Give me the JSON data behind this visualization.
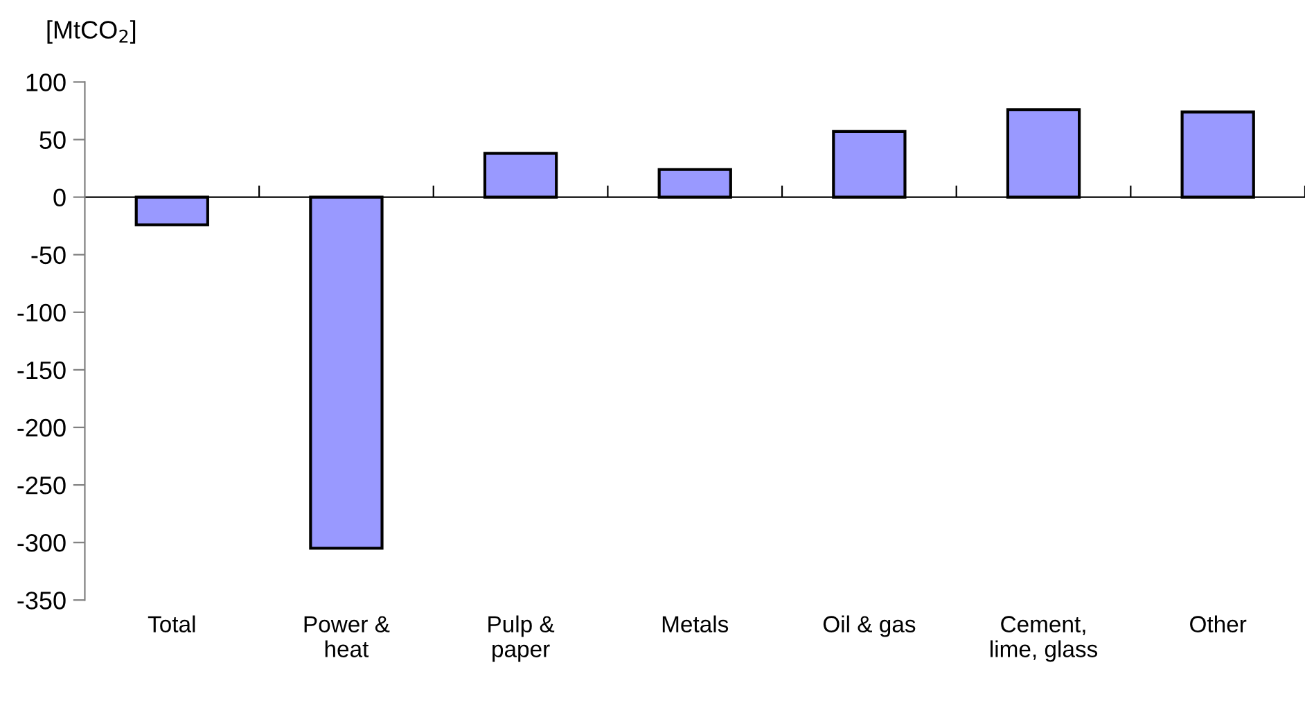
{
  "chart_data": {
    "type": "bar",
    "ylabel": "[MtCO$_{2}$]",
    "categories": [
      "Total",
      "Power &\nheat",
      "Pulp &\npaper",
      "Metals",
      "Oil & gas",
      "Cement,\nlime, glass",
      "Other"
    ],
    "values": [
      -24,
      -305,
      38,
      24,
      57,
      76,
      74
    ],
    "color": "#9999ff",
    "ylim": [
      -350,
      100
    ],
    "yticks": [
      -350,
      -300,
      -250,
      -200,
      -150,
      -100,
      -50,
      0,
      50,
      100
    ],
    "legend": false
  }
}
